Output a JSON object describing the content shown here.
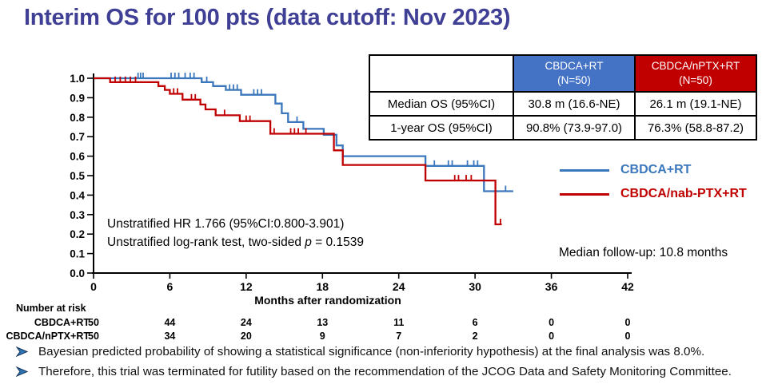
{
  "slide": {
    "title": "Interim OS for 100 pts (data cutoff: Nov 2023)"
  },
  "colors": {
    "title": "#3E3F95",
    "curve_blue": "#3B77BC",
    "curve_red": "#C00000",
    "table_header_blue": "#4472C4",
    "table_header_red": "#C00000",
    "bullet_arrow": "#2E75B6",
    "axis": "#000000"
  },
  "summary_table": {
    "col_headers": [
      "CBDCA+RT\n(N=50)",
      "CBDCA/nPTX+RT\n(N=50)"
    ],
    "rows": [
      {
        "label": "Median OS  (95%CI)",
        "arm_blue": "30.8 m (16.6-NE)",
        "arm_red": "26.1 m (19.1-NE)"
      },
      {
        "label": "1-year OS (95%CI)",
        "arm_blue": "90.8% (73.9-97.0)",
        "arm_red": "76.3% (58.8-87.2)"
      }
    ]
  },
  "legend": {
    "items": [
      {
        "label": "CBDCA+RT",
        "color": "#3B77BC"
      },
      {
        "label": "CBDCA/nab-PTX+RT",
        "color": "#C00000"
      }
    ]
  },
  "stats": {
    "hr_line": "Unstratified HR 1.766 (95%CI:0.800-3.901)",
    "logrank_prefix": "Unstratified log-rank test, two-sided ",
    "logrank_p_symbol": "p",
    "logrank_suffix": " = 0.1539",
    "median_followup": "Median follow-up: 10.8 months"
  },
  "bullets": {
    "icon": "arrowhead-right-icon",
    "items": [
      {
        "text": "Bayesian predicted probability of showing a statistical significance (non-inferiority hypothesis) at the final analysis was 8.0%."
      },
      {
        "text": "Therefore, this trial was terminated for futility based on the recommendation of the JCOG Data and Safety Monitoring Committee."
      }
    ]
  },
  "chart_data": {
    "type": "line",
    "subtype": "kaplan-meier-step",
    "title": "",
    "xlabel": "Months after randomization",
    "ylabel": "",
    "xlim": [
      0,
      42
    ],
    "ylim": [
      0.0,
      1.0
    ],
    "xticks": [
      0,
      6,
      12,
      18,
      24,
      30,
      36,
      42
    ],
    "yticks": [
      0.0,
      0.1,
      0.2,
      0.3,
      0.4,
      0.5,
      0.6,
      0.7,
      0.8,
      0.9,
      1.0
    ],
    "grid": false,
    "legend_position": "right-middle",
    "series": [
      {
        "name": "CBDCA+RT",
        "color": "#3B77BC",
        "start": [
          0,
          1.0
        ],
        "steps": [
          [
            8.5,
            0.98
          ],
          [
            9.4,
            0.96
          ],
          [
            10.4,
            0.94
          ],
          [
            11.6,
            0.915
          ],
          [
            14.3,
            0.87
          ],
          [
            14.8,
            0.82
          ],
          [
            15.3,
            0.775
          ],
          [
            16.5,
            0.74
          ],
          [
            18.1,
            0.71
          ],
          [
            19.1,
            0.655
          ],
          [
            19.6,
            0.6
          ],
          [
            26.1,
            0.55
          ],
          [
            30.7,
            0.42
          ]
        ],
        "end_t": 33.0,
        "censors": [
          [
            3.5,
            1.0
          ],
          [
            3.7,
            1.0
          ],
          [
            3.9,
            1.0
          ],
          [
            6.1,
            1.0
          ],
          [
            6.4,
            1.0
          ],
          [
            6.7,
            1.0
          ],
          [
            7.2,
            1.0
          ],
          [
            7.6,
            1.0
          ],
          [
            7.9,
            1.0
          ],
          [
            8.9,
            0.98
          ],
          [
            10.7,
            0.94
          ],
          [
            11.0,
            0.94
          ],
          [
            11.3,
            0.94
          ],
          [
            12.6,
            0.915
          ],
          [
            12.9,
            0.915
          ],
          [
            13.2,
            0.915
          ],
          [
            16.0,
            0.775
          ],
          [
            26.8,
            0.55
          ],
          [
            27.9,
            0.55
          ],
          [
            28.2,
            0.55
          ],
          [
            29.4,
            0.55
          ],
          [
            29.9,
            0.55
          ],
          [
            30.2,
            0.55
          ],
          [
            31.6,
            0.42
          ],
          [
            32.4,
            0.42
          ]
        ]
      },
      {
        "name": "CBDCA/nab-PTX+RT",
        "color": "#C00000",
        "start": [
          0,
          1.0
        ],
        "steps": [
          [
            1.3,
            0.98
          ],
          [
            5.1,
            0.96
          ],
          [
            5.6,
            0.94
          ],
          [
            6.0,
            0.92
          ],
          [
            7.0,
            0.89
          ],
          [
            8.4,
            0.865
          ],
          [
            8.8,
            0.84
          ],
          [
            9.6,
            0.81
          ],
          [
            11.5,
            0.78
          ],
          [
            13.9,
            0.715
          ],
          [
            18.9,
            0.63
          ],
          [
            19.6,
            0.555
          ],
          [
            26.1,
            0.475
          ],
          [
            31.6,
            0.25
          ]
        ],
        "end_t": 32.1,
        "censors": [
          [
            1.7,
            0.98
          ],
          [
            2.1,
            0.98
          ],
          [
            2.5,
            0.98
          ],
          [
            2.9,
            0.98
          ],
          [
            3.3,
            0.98
          ],
          [
            6.3,
            0.92
          ],
          [
            6.6,
            0.92
          ],
          [
            7.7,
            0.89
          ],
          [
            8.0,
            0.89
          ],
          [
            10.3,
            0.81
          ],
          [
            12.0,
            0.78
          ],
          [
            12.3,
            0.78
          ],
          [
            14.2,
            0.715
          ],
          [
            15.5,
            0.715
          ],
          [
            15.8,
            0.715
          ],
          [
            16.1,
            0.715
          ],
          [
            16.7,
            0.715
          ],
          [
            28.4,
            0.475
          ],
          [
            28.7,
            0.475
          ],
          [
            29.3,
            0.475
          ],
          [
            29.7,
            0.475
          ],
          [
            32.0,
            0.25
          ]
        ]
      }
    ],
    "at_risk": {
      "title": "Number at risk",
      "times": [
        0,
        6,
        12,
        18,
        24,
        30,
        36,
        42
      ],
      "rows": [
        {
          "label": "CBDCA+RT",
          "counts": [
            50,
            44,
            24,
            13,
            11,
            6,
            0,
            0
          ]
        },
        {
          "label": "CBDCA/nPTX+RT",
          "counts": [
            50,
            34,
            20,
            9,
            7,
            2,
            0,
            0
          ]
        }
      ]
    }
  }
}
